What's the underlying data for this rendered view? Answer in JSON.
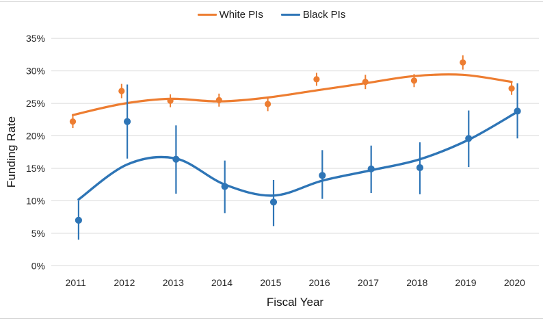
{
  "chart_data": {
    "type": "line",
    "title": "",
    "xlabel": "Fiscal Year",
    "ylabel": "Funding Rate",
    "categories": [
      "2011",
      "2012",
      "2013",
      "2014",
      "2015",
      "2016",
      "2017",
      "2018",
      "2019",
      "2020"
    ],
    "ylim": [
      0,
      35
    ],
    "yticks": [
      0,
      5,
      10,
      15,
      20,
      25,
      30,
      35
    ],
    "ytick_labels": [
      "0%",
      "5%",
      "10%",
      "15%",
      "20%",
      "25%",
      "30%",
      "35%"
    ],
    "grid": true,
    "legend_position": "top-center",
    "style_note": "circle markers with vertical error bars and smoothed trend lines",
    "series": [
      {
        "name": "White PIs",
        "color": "#ED7D31",
        "values": [
          22.2,
          26.9,
          25.4,
          25.5,
          24.9,
          28.7,
          28.3,
          28.5,
          31.3,
          27.3
        ],
        "err_low": [
          21.2,
          25.8,
          24.4,
          24.5,
          23.8,
          27.7,
          27.2,
          27.5,
          30.2,
          26.3
        ],
        "err_high": [
          23.2,
          28.0,
          26.4,
          26.5,
          26.0,
          29.7,
          29.4,
          29.5,
          32.4,
          28.3
        ],
        "trend": [
          23.2,
          24.9,
          25.7,
          25.3,
          25.9,
          27.0,
          28.1,
          29.2,
          29.4,
          28.3
        ]
      },
      {
        "name": "Black PIs",
        "color": "#2E75B6",
        "values": [
          7.0,
          22.2,
          16.4,
          12.2,
          9.8,
          13.9,
          14.9,
          15.1,
          19.6,
          23.8
        ],
        "err_low": [
          4.0,
          16.5,
          11.1,
          8.1,
          6.1,
          10.3,
          11.2,
          11.0,
          15.2,
          19.6
        ],
        "err_high": [
          10.0,
          27.9,
          21.6,
          16.2,
          13.2,
          17.8,
          18.5,
          19.0,
          23.9,
          28.1
        ],
        "trend": [
          10.2,
          15.6,
          16.5,
          12.5,
          10.8,
          13.1,
          14.7,
          16.4,
          19.4,
          23.7
        ]
      }
    ]
  }
}
